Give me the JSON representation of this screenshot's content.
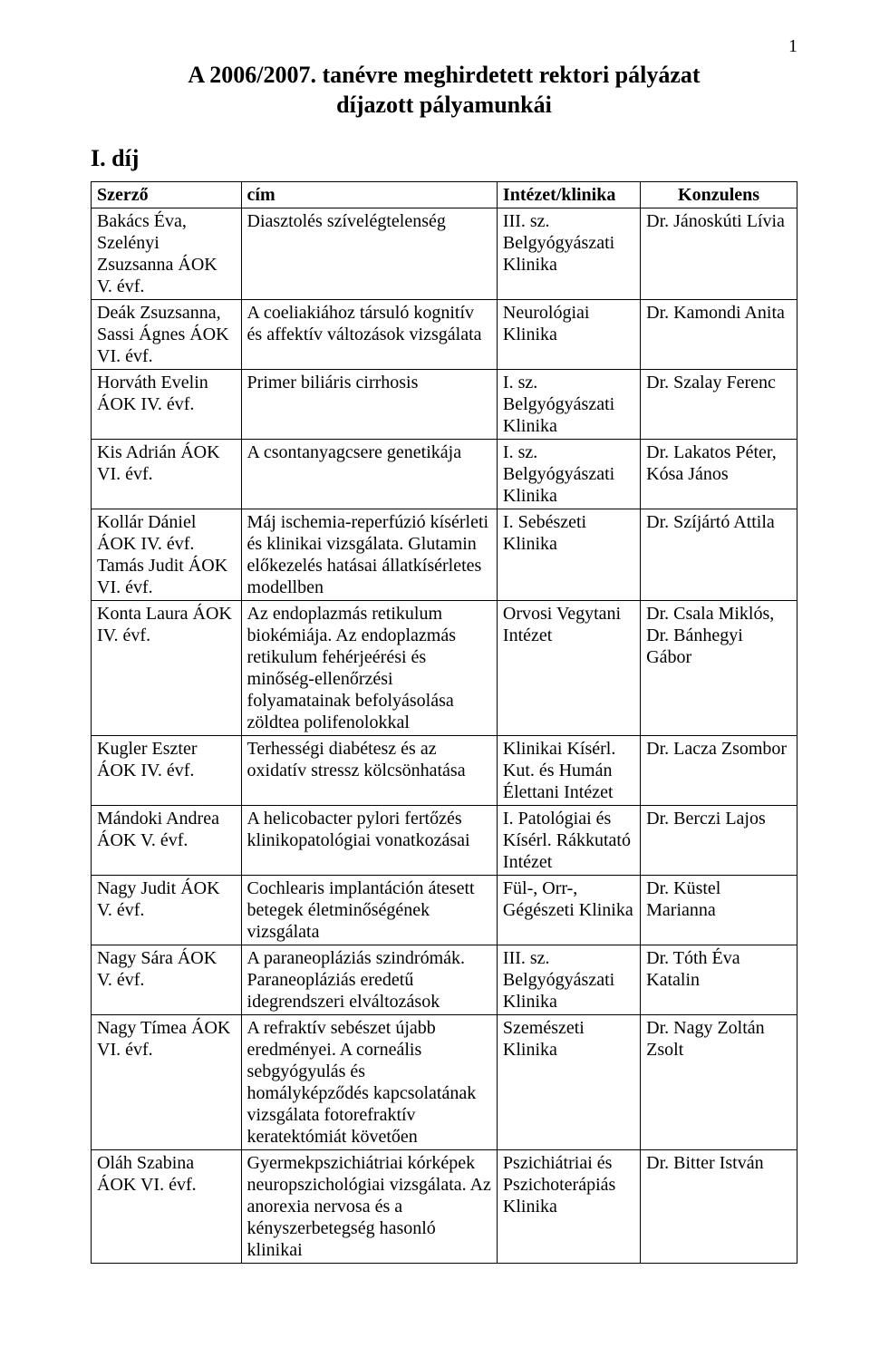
{
  "page_number": "1",
  "title_line1": "A 2006/2007. tanévre meghirdetett rektori pályázat",
  "title_line2": "díjazott pályamunkái",
  "section_heading": "I. díj",
  "columns": [
    "Szerző",
    "cím",
    "Intézet/klinika",
    "Konzulens"
  ],
  "rows": [
    {
      "author": "Bakács Éva, Szelényi Zsuzsanna ÁOK V. évf.",
      "title": "Diasztolés szívelégtelenség",
      "institute": "III. sz. Belgyógyászati Klinika",
      "consultant": "Dr. Jánoskúti Lívia"
    },
    {
      "author": "Deák Zsuzsanna, Sassi Ágnes ÁOK VI. évf.",
      "title": "A coeliakiához társuló kognitív és affektív változások vizsgálata",
      "institute": "Neurológiai Klinika",
      "consultant": "Dr. Kamondi Anita"
    },
    {
      "author": "Horváth Evelin ÁOK IV. évf.",
      "title": "Primer biliáris cirrhosis",
      "institute": "I. sz. Belgyógyászati Klinika",
      "consultant": "Dr. Szalay Ferenc"
    },
    {
      "author": "Kis Adrián ÁOK VI. évf.",
      "title": "A csontanyagcsere genetikája",
      "institute": "I. sz. Belgyógyászati Klinika",
      "consultant": "Dr. Lakatos Péter, Kósa János"
    },
    {
      "author": "Kollár Dániel ÁOK IV. évf. Tamás Judit ÁOK VI. évf.",
      "title": "Máj ischemia-reperfúzió kísérleti és klinikai vizsgálata. Glutamin előkezelés hatásai állatkísérletes modellben",
      "institute": "I. Sebészeti Klinika",
      "consultant": "Dr. Szíjártó Attila"
    },
    {
      "author": "Konta Laura ÁOK IV. évf.",
      "title": "Az endoplazmás retikulum biokémiája. Az endoplazmás retikulum fehérjeérési és minőség-ellenőrzési folyamatainak befolyásolása zöldtea polifenolokkal",
      "institute": "Orvosi Vegytani Intézet",
      "consultant": "Dr. Csala Miklós, Dr. Bánhegyi Gábor"
    },
    {
      "author": "Kugler Eszter ÁOK IV. évf.",
      "title": "Terhességi diabétesz és az oxidatív stressz kölcsönhatása",
      "institute": "Klinikai Kísérl. Kut. és Humán Élettani Intézet",
      "consultant": "Dr. Lacza Zsombor"
    },
    {
      "author": "Mándoki Andrea ÁOK V. évf.",
      "title": "A helicobacter pylori fertőzés klinikopatológiai vonatkozásai",
      "institute": "I. Patológiai és Kísérl. Rákkutató Intézet",
      "consultant": "Dr. Berczi Lajos"
    },
    {
      "author": "Nagy Judit ÁOK V. évf.",
      "title": "Cochlearis implantáción átesett betegek életminőségének vizsgálata",
      "institute": "Fül-, Orr-, Gégészeti Klinika",
      "consultant": "Dr. Küstel Marianna"
    },
    {
      "author": "Nagy Sára ÁOK V. évf.",
      "title": "A paraneopláziás szindrómák. Paraneopláziás eredetű idegrendszeri elváltozások",
      "institute": "III. sz. Belgyógyászati Klinika",
      "consultant": "Dr. Tóth Éva Katalin"
    },
    {
      "author": "Nagy Tímea ÁOK VI. évf.",
      "title": "A refraktív sebészet újabb eredményei. A corneális sebgyógyulás és homályképződés kapcsolatának vizsgálata fotorefraktív keratektómiát követően",
      "institute": "Szemészeti Klinika",
      "consultant": "Dr. Nagy Zoltán Zsolt"
    },
    {
      "author": "Oláh Szabina ÁOK VI. évf.",
      "title": "Gyermekpszichiátriai kórképek neuropszichológiai vizsgálata. Az anorexia nervosa és a kényszerbetegség hasonló klinikai",
      "institute": "Pszichiátriai és Pszichoterápiás Klinika",
      "consultant": "Dr. Bitter István"
    }
  ]
}
